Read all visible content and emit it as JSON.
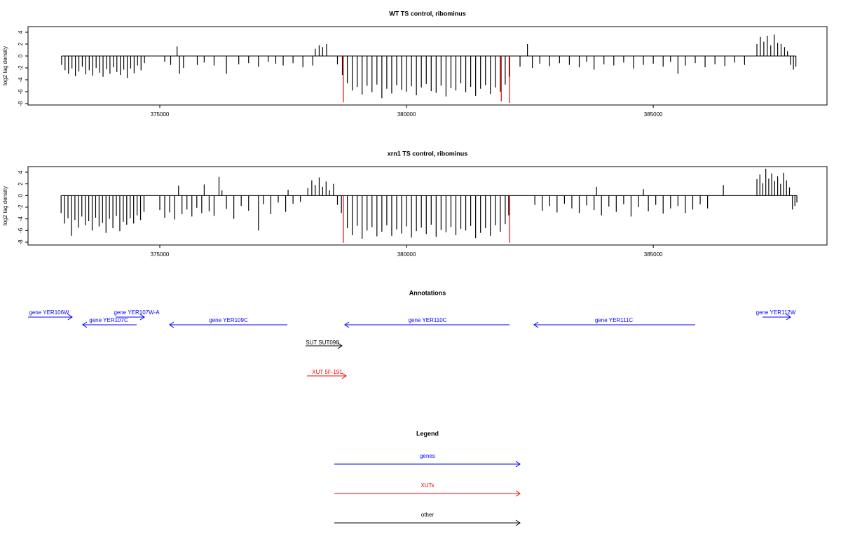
{
  "chart_data": [
    {
      "type": "bar",
      "title": "WT TS control, ribominus",
      "ylabel": "log2 tag density",
      "xlim": [
        372330,
        388520
      ],
      "xticks": [
        375000,
        380000,
        385000
      ],
      "ylim": [
        -8.24,
        4.94
      ],
      "yticks": [
        -8,
        -6,
        -4,
        -2,
        0,
        2,
        4
      ],
      "series": [
        {
          "color": "#000000",
          "x": [
            373010,
            373080,
            373150,
            373220,
            373290,
            373360,
            373430,
            373500,
            373570,
            373640,
            373710,
            373780,
            373850,
            373920,
            373990,
            374060,
            374130,
            374200,
            374270,
            374340,
            374410,
            374480,
            374550,
            374620,
            374690,
            375100,
            375220,
            375350,
            375400,
            375480,
            375760,
            375900,
            376100,
            376350,
            376600,
            376800,
            377000,
            377200,
            377350,
            377500,
            377700,
            377900,
            378100,
            378150,
            378230,
            378300,
            378380,
            378600,
            378700,
            378800,
            378900,
            379000,
            379100,
            379200,
            379300,
            379400,
            379500,
            379600,
            379700,
            379800,
            379900,
            380000,
            380100,
            380200,
            380300,
            380400,
            380500,
            380600,
            380700,
            380800,
            380900,
            381000,
            381100,
            381200,
            381300,
            381400,
            381500,
            381600,
            381700,
            381800,
            381900,
            382000,
            382080,
            382300,
            382450,
            382550,
            382700,
            382900,
            383100,
            383300,
            383500,
            383650,
            383800,
            384000,
            384200,
            384400,
            384600,
            384800,
            385000,
            385200,
            385350,
            385500,
            385650,
            385850,
            386050,
            386250,
            386450,
            386650,
            386850,
            387100,
            387170,
            387240,
            387310,
            387380,
            387450,
            387520,
            387590,
            387660,
            387720,
            387780,
            387840,
            387890
          ],
          "values": [
            -1.5,
            -2.4,
            -3.0,
            -2.1,
            -3.4,
            -2.6,
            -1.8,
            -3.1,
            -2.4,
            -3.3,
            -2.0,
            -2.8,
            -3.5,
            -2.2,
            -3.0,
            -1.9,
            -2.7,
            -3.2,
            -2.3,
            -3.7,
            -2.1,
            -2.9,
            -1.6,
            -2.4,
            -1.2,
            -1.0,
            -1.5,
            1.6,
            -3.0,
            -2.0,
            -1.5,
            -1.1,
            -1.6,
            -3.0,
            -1.4,
            -1.2,
            -1.8,
            -1.0,
            -1.3,
            -1.6,
            -1.2,
            -1.9,
            -1.6,
            1.2,
            1.8,
            1.5,
            2.0,
            -1.4,
            -3.2,
            -4.6,
            -5.8,
            -5.2,
            -6.5,
            -5.0,
            -6.1,
            -4.8,
            -7.1,
            -5.5,
            -6.3,
            -4.9,
            -5.7,
            -6.0,
            -5.1,
            -6.6,
            -5.3,
            -4.7,
            -5.9,
            -6.2,
            -5.0,
            -6.8,
            -5.4,
            -5.8,
            -4.6,
            -6.1,
            -5.2,
            -6.7,
            -5.5,
            -4.9,
            -6.4,
            -5.3,
            -6.0,
            -4.8,
            -3.5,
            -1.8,
            2.0,
            -2.0,
            -1.3,
            -1.7,
            -1.2,
            -1.5,
            -1.9,
            -1.0,
            -2.3,
            -1.4,
            -1.6,
            -1.1,
            -2.1,
            -1.5,
            -1.3,
            -1.8,
            -1.0,
            -3.0,
            -1.6,
            -1.2,
            -1.9,
            -1.4,
            -1.7,
            -1.1,
            -1.5,
            2.0,
            3.2,
            2.4,
            3.4,
            1.8,
            3.6,
            2.2,
            2.0,
            1.5,
            0.8,
            -1.5,
            -2.3,
            -1.8
          ]
        },
        {
          "color": "#ff0000",
          "x": [
            378720,
            381920,
            382090
          ],
          "values": [
            -7.8,
            -7.6,
            -7.9
          ]
        }
      ]
    },
    {
      "type": "bar",
      "title": "xrn1 TS control, ribominus",
      "ylabel": "log2 tag density",
      "xlim": [
        372330,
        388520
      ],
      "xticks": [
        375000,
        380000,
        385000
      ],
      "ylim": [
        -8.48,
        4.96
      ],
      "yticks": [
        -8,
        -6,
        -4,
        -2,
        0,
        2,
        4
      ],
      "series": [
        {
          "color": "#000000",
          "x": [
            373000,
            373070,
            373140,
            373210,
            373280,
            373350,
            373420,
            373490,
            373560,
            373630,
            373700,
            373770,
            373840,
            373910,
            373980,
            374050,
            374120,
            374190,
            374260,
            374330,
            374400,
            374470,
            374540,
            374610,
            374680,
            375000,
            375100,
            375200,
            375300,
            375380,
            375450,
            375550,
            375650,
            375750,
            375850,
            375900,
            376000,
            376100,
            376200,
            376260,
            376350,
            376500,
            376650,
            376800,
            377000,
            377100,
            377250,
            377400,
            377550,
            377600,
            377700,
            377850,
            378000,
            378080,
            378150,
            378230,
            378300,
            378370,
            378440,
            378520,
            378600,
            378680,
            378800,
            378900,
            379000,
            379100,
            379200,
            379300,
            379400,
            379500,
            379600,
            379700,
            379800,
            379900,
            380000,
            380100,
            380200,
            380300,
            380400,
            380500,
            380600,
            380700,
            380800,
            380900,
            381000,
            381100,
            381200,
            381300,
            381400,
            381500,
            381600,
            381700,
            381800,
            381900,
            382000,
            382070,
            382600,
            382750,
            382900,
            383050,
            383200,
            383350,
            383500,
            383650,
            383800,
            383850,
            383950,
            384100,
            384250,
            384400,
            384550,
            384700,
            384800,
            384900,
            385050,
            385200,
            385350,
            385500,
            385650,
            385800,
            385950,
            386100,
            386420,
            387100,
            387160,
            387220,
            387280,
            387340,
            387400,
            387460,
            387520,
            387580,
            387640,
            387700,
            387760,
            387820,
            387870,
            387910
          ],
          "values": [
            -3.0,
            -4.8,
            -3.9,
            -6.9,
            -4.2,
            -5.5,
            -3.6,
            -5.1,
            -4.4,
            -6.0,
            -3.8,
            -5.3,
            -4.7,
            -6.4,
            -4.0,
            -5.6,
            -3.5,
            -6.1,
            -4.5,
            -5.0,
            -3.9,
            -4.8,
            -3.4,
            -4.2,
            -2.8,
            -2.5,
            -3.8,
            -2.9,
            -4.1,
            1.7,
            -3.2,
            -2.4,
            -3.6,
            -2.1,
            -3.0,
            1.9,
            -2.7,
            -3.5,
            3.2,
            0.9,
            -2.3,
            -4.0,
            -1.8,
            -2.6,
            -6.0,
            -1.5,
            -3.2,
            -1.2,
            -2.8,
            1.0,
            -1.4,
            -1.1,
            1.3,
            2.6,
            1.8,
            3.1,
            1.5,
            2.4,
            0.9,
            2.0,
            -1.6,
            -3.0,
            -5.6,
            -6.8,
            -5.2,
            -7.4,
            -6.0,
            -5.4,
            -7.0,
            -6.2,
            -5.1,
            -6.9,
            -5.8,
            -6.5,
            -5.3,
            -7.2,
            -6.1,
            -5.5,
            -6.6,
            -5.0,
            -7.1,
            -5.9,
            -6.3,
            -5.4,
            -6.8,
            -5.7,
            -6.0,
            -5.2,
            -7.3,
            -6.4,
            -5.6,
            -6.9,
            -5.1,
            -6.2,
            -4.9,
            -3.4,
            -1.6,
            -2.6,
            -1.8,
            -2.9,
            -1.4,
            -2.2,
            -3.0,
            -1.7,
            -2.5,
            1.5,
            -3.4,
            -1.9,
            -2.8,
            -1.5,
            -3.6,
            -2.0,
            1.1,
            -2.7,
            -1.6,
            -3.1,
            -2.2,
            -1.8,
            -3.0,
            -2.4,
            -1.5,
            -2.2,
            1.8,
            2.8,
            3.6,
            2.1,
            4.6,
            2.9,
            3.8,
            2.5,
            3.3,
            2.0,
            3.9,
            2.6,
            1.4,
            -2.4,
            -1.8,
            -1.2
          ]
        },
        {
          "color": "#ff0000",
          "x": [
            378720,
            382090
          ],
          "values": [
            -8.1,
            -8.1
          ]
        }
      ]
    }
  ],
  "annotations": {
    "title": "Annotations",
    "features": [
      {
        "label": "gene YER106W",
        "color": "#0000ff"
      },
      {
        "label": "gene YER107C",
        "color": "#0000ff"
      },
      {
        "label": "gene YER107W-A",
        "color": "#0000ff"
      },
      {
        "label": "gene YER109C",
        "color": "#0000ff"
      },
      {
        "label": "gene YER110C",
        "color": "#0000ff"
      },
      {
        "label": "gene YER111C",
        "color": "#0000ff"
      },
      {
        "label": "gene YER112W",
        "color": "#0000ff"
      },
      {
        "label": "SUT SUT098",
        "color": "#000000"
      },
      {
        "label": "XUT 5F-191",
        "color": "#ff0000"
      }
    ]
  },
  "legend": {
    "title": "Legend",
    "items": [
      {
        "label": "genes",
        "color": "#0000ff"
      },
      {
        "label": "XUTs",
        "color": "#ff0000"
      },
      {
        "label": "other",
        "color": "#000000"
      }
    ]
  }
}
